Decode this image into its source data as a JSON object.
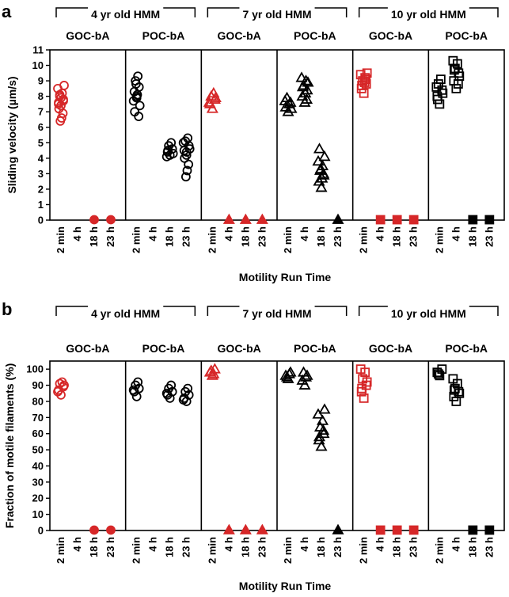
{
  "colors": {
    "goc": "#d62728",
    "poc": "#000000"
  },
  "chart_data": [
    {
      "type": "scatter",
      "panel_label": "a",
      "ylabel": "Sliding velocity (µm/s)",
      "xlabel": "Motility Run Time",
      "ylim": [
        0,
        11
      ],
      "yticks": [
        "0",
        "1",
        "2",
        "3",
        "4",
        "5",
        "6",
        "7",
        "8",
        "9",
        "10",
        "11"
      ],
      "time_labels": [
        "2 min",
        "4 h",
        "18 h",
        "23 h"
      ],
      "groups": [
        {
          "title": "4 yr old HMM",
          "marker": "circle",
          "subpanels": [
            {
              "name": "GOC-bA",
              "color": "goc",
              "points": [
                [
                  7.4,
                  7.6,
                  7.8,
                  8.0,
                  8.2,
                  8.5,
                  8.7,
                  7.2,
                  6.9,
                  6.6,
                  6.4,
                  7.9,
                  7.5,
                  7.7,
                  8.1
                ],
                [],
                [
                  0
                ],
                [
                  0
                ]
              ]
            },
            {
              "name": "POC-bA",
              "color": "poc",
              "points": [
                [
                  8.0,
                  8.3,
                  8.6,
                  9.0,
                  9.3,
                  7.7,
                  7.4,
                  7.0,
                  6.7,
                  8.1,
                  8.8,
                  7.9
                ],
                [],
                [
                  4.2,
                  4.4,
                  4.6,
                  4.8,
                  5.0,
                  4.1,
                  4.3,
                  4.5
                ],
                [
                  4.2,
                  4.5,
                  4.8,
                  5.1,
                  5.3,
                  5.0,
                  4.6,
                  4.0,
                  3.6,
                  3.2,
                  2.8,
                  4.4
                ]
              ]
            }
          ]
        },
        {
          "title": "7 yr old HMM",
          "marker": "triangle",
          "subpanels": [
            {
              "name": "GOC-bA",
              "color": "goc",
              "points": [
                [
                  7.2,
                  7.5,
                  7.8,
                  8.0,
                  8.2,
                  7.6,
                  7.9
                ],
                [
                  0
                ],
                [
                  0
                ],
                [
                  0
                ]
              ]
            },
            {
              "name": "POC-bA",
              "color": "poc",
              "points": [
                [
                  7.0,
                  7.3,
                  7.6,
                  7.9,
                  7.5,
                  7.7,
                  7.2
                ],
                [
                  7.6,
                  8.0,
                  8.4,
                  8.7,
                  9.0,
                  9.2,
                  8.9,
                  8.6,
                  7.8,
                  8.2
                ],
                [
                  2.1,
                  2.5,
                  2.9,
                  3.2,
                  3.5,
                  3.8,
                  4.1,
                  4.6,
                  3.0,
                  2.7,
                  3.3
                ],
                [
                  0
                ]
              ]
            }
          ]
        },
        {
          "title": "10 yr old HMM",
          "marker": "square",
          "subpanels": [
            {
              "name": "GOC-bA",
              "color": "goc",
              "points": [
                [
                  8.2,
                  8.5,
                  8.8,
                  9.0,
                  9.2,
                  9.4,
                  9.5,
                  8.7,
                  9.1,
                  8.9
                ],
                [
                  0
                ],
                [
                  0
                ],
                [
                  0
                ]
              ]
            },
            {
              "name": "POC-bA",
              "color": "poc",
              "points": [
                [
                  7.5,
                  8.0,
                  8.4,
                  8.8,
                  9.1,
                  8.6,
                  8.2,
                  7.8
                ],
                [
                  8.5,
                  9.0,
                  9.5,
                  9.8,
                  10.1,
                  10.3,
                  9.3,
                  9.7,
                  8.8
                ],
                [
                  0
                ],
                [
                  0
                ]
              ]
            }
          ]
        }
      ]
    },
    {
      "type": "scatter",
      "panel_label": "b",
      "ylabel": "Fraction of motile filaments (%)",
      "xlabel": "Motility Run Time",
      "ylim": [
        0,
        105
      ],
      "yticks": [
        "0",
        "10",
        "20",
        "30",
        "40",
        "50",
        "60",
        "70",
        "80",
        "90",
        "100"
      ],
      "time_labels": [
        "2 min",
        "4 h",
        "18 h",
        "23 h"
      ],
      "groups": [
        {
          "title": "4 yr old HMM",
          "marker": "circle",
          "subpanels": [
            {
              "name": "GOC-bA",
              "color": "goc",
              "points": [
                [
                  84,
                  87,
                  89,
                  91,
                  92,
                  86,
                  90
                ],
                [],
                [
                  0
                ],
                [
                  0
                ]
              ]
            },
            {
              "name": "POC-bA",
              "color": "poc",
              "points": [
                [
                  83,
                  86,
                  88,
                  90,
                  92,
                  87
                ],
                [],
                [
                  82,
                  84,
                  86,
                  88,
                  90,
                  85
                ],
                [
                  80,
                  82,
                  84,
                  86,
                  88,
                  81
                ]
              ]
            }
          ]
        },
        {
          "title": "7 yr old HMM",
          "marker": "triangle",
          "subpanels": [
            {
              "name": "GOC-bA",
              "color": "goc",
              "points": [
                [
                  96,
                  98,
                  100,
                  99,
                  97
                ],
                [
                  0
                ],
                [
                  0
                ],
                [
                  0
                ]
              ]
            },
            {
              "name": "POC-bA",
              "color": "poc",
              "points": [
                [
                  94,
                  96,
                  98,
                  95,
                  97
                ],
                [
                  90,
                  93,
                  96,
                  98,
                  95
                ],
                [
                  52,
                  56,
                  60,
                  64,
                  68,
                  72,
                  75,
                  58,
                  62
                ],
                [
                  0
                ]
              ]
            }
          ]
        },
        {
          "title": "10 yr old HMM",
          "marker": "square",
          "subpanels": [
            {
              "name": "GOC-bA",
              "color": "goc",
              "points": [
                [
                  82,
                  86,
                  90,
                  94,
                  98,
                  100,
                  92,
                  88
                ],
                [
                  0
                ],
                [
                  0
                ],
                [
                  0
                ]
              ]
            },
            {
              "name": "POC-bA",
              "color": "poc",
              "points": [
                [
                  96,
                  98,
                  100,
                  97
                ],
                [
                  80,
                  83,
                  86,
                  88,
                  91,
                  94,
                  85,
                  87
                ],
                [
                  0
                ],
                [
                  0
                ]
              ]
            }
          ]
        }
      ]
    }
  ]
}
